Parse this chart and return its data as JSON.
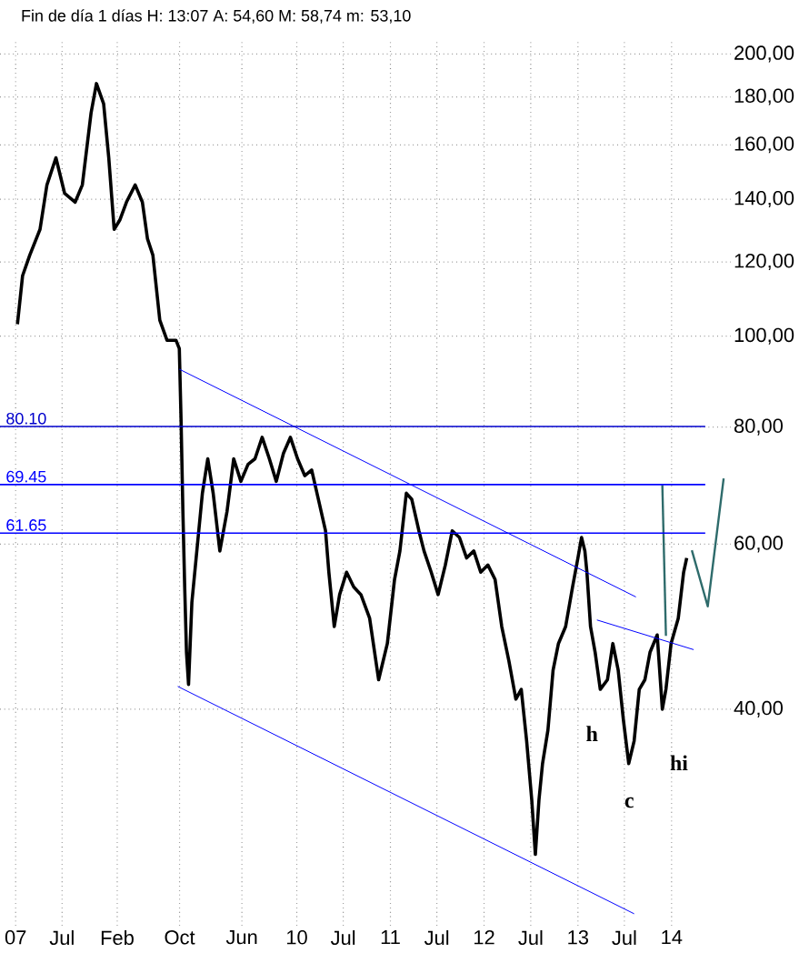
{
  "chart_data": {
    "type": "line",
    "title": "Fin de día 1 días  H: 13:07  A: 54,60  M: 58,74  m: 53,10",
    "log": "y",
    "grid": true,
    "marker": "none",
    "line_style": "solid",
    "xlim": [
      "2006-11-01",
      "2014-08-20"
    ],
    "ylim": [
      23.5,
      207
    ],
    "xticks": [
      {
        "value": "2007-01-01",
        "label": "07"
      },
      {
        "value": "2007-07-01",
        "label": "Jul"
      },
      {
        "value": "2008-02-01",
        "label": "Feb"
      },
      {
        "value": "2008-10-01",
        "label": "Oct"
      },
      {
        "value": "2009-06-01",
        "label": "Jun"
      },
      {
        "value": "2010-01-01",
        "label": "10"
      },
      {
        "value": "2010-07-01",
        "label": "Jul"
      },
      {
        "value": "2011-01-01",
        "label": "11"
      },
      {
        "value": "2011-07-01",
        "label": "Jul"
      },
      {
        "value": "2012-01-01",
        "label": "12"
      },
      {
        "value": "2012-07-01",
        "label": "Jul"
      },
      {
        "value": "2013-01-01",
        "label": "13"
      },
      {
        "value": "2013-07-01",
        "label": "Jul"
      },
      {
        "value": "2014-01-01",
        "label": "14"
      }
    ],
    "yticks": [
      {
        "value": 40,
        "label": "40,00"
      },
      {
        "value": 60,
        "label": "60,00"
      },
      {
        "value": 80,
        "label": "80,00"
      },
      {
        "value": 100,
        "label": "100,00"
      },
      {
        "value": 120,
        "label": "120,00"
      },
      {
        "value": 140,
        "label": "140,00"
      },
      {
        "value": 160,
        "label": "160,00"
      },
      {
        "value": 180,
        "label": "180,00"
      },
      {
        "value": 200,
        "label": "200,00"
      }
    ],
    "series": [
      {
        "color": "#000000",
        "x": [
          "2007-01-08",
          "2007-01-28",
          "2007-02-25",
          "2007-04-06",
          "2007-05-03",
          "2007-06-07",
          "2007-07-11",
          "2007-08-21",
          "2007-09-18",
          "2007-10-22",
          "2007-11-12",
          "2007-12-10",
          "2007-12-30",
          "2008-01-20",
          "2008-02-11",
          "2008-03-08",
          "2008-04-11",
          "2008-05-09",
          "2008-05-29",
          "2008-06-19",
          "2008-07-16",
          "2008-08-13",
          "2008-09-17",
          "2008-09-30",
          "2008-10-07",
          "2008-10-14",
          "2008-10-21",
          "2008-10-28",
          "2008-11-05",
          "2008-11-18",
          "2008-12-02",
          "2008-12-29",
          "2009-01-19",
          "2009-02-09",
          "2009-03-07",
          "2009-04-04",
          "2009-04-30",
          "2009-05-28",
          "2009-06-25",
          "2009-07-22",
          "2009-08-19",
          "2009-09-16",
          "2009-10-13",
          "2009-11-10",
          "2009-12-07",
          "2010-01-04",
          "2010-02-01",
          "2010-02-28",
          "2010-03-26",
          "2010-04-23",
          "2010-05-06",
          "2010-05-27",
          "2010-06-17",
          "2010-07-14",
          "2010-08-11",
          "2010-09-08",
          "2010-10-12",
          "2010-11-16",
          "2010-12-20",
          "2011-01-17",
          "2011-02-07",
          "2011-03-04",
          "2011-03-25",
          "2011-04-22",
          "2011-05-12",
          "2011-06-09",
          "2011-07-06",
          "2011-08-03",
          "2011-08-30",
          "2011-09-27",
          "2011-10-25",
          "2011-11-22",
          "2011-12-19",
          "2012-01-16",
          "2012-02-13",
          "2012-03-10",
          "2012-04-07",
          "2012-05-04",
          "2012-05-25",
          "2012-06-15",
          "2012-07-05",
          "2012-07-19",
          "2012-08-02",
          "2012-08-16",
          "2012-09-06",
          "2012-09-26",
          "2012-10-17",
          "2012-11-14",
          "2012-12-11",
          "2013-01-01",
          "2013-01-15",
          "2013-01-28",
          "2013-02-05",
          "2013-02-19",
          "2013-03-09",
          "2013-03-29",
          "2013-04-26",
          "2013-05-17",
          "2013-06-07",
          "2013-06-27",
          "2013-07-18",
          "2013-08-08",
          "2013-08-28",
          "2013-09-19",
          "2013-10-09",
          "2013-11-06",
          "2013-11-26",
          "2013-12-10",
          "2013-12-30",
          "2014-01-27",
          "2014-02-17",
          "2014-03-01"
        ],
        "values": [
          103,
          116,
          122,
          130,
          145,
          155,
          142,
          139,
          145,
          173,
          186,
          177,
          155,
          130,
          133,
          139,
          145,
          139,
          127,
          122,
          104,
          99,
          99,
          97,
          81,
          65,
          54,
          46,
          42.5,
          52,
          57,
          68,
          74,
          68,
          59,
          65,
          74,
          70,
          73,
          74,
          78,
          74,
          70,
          75,
          78,
          74,
          71,
          72,
          67,
          62,
          56,
          49,
          53,
          56,
          54,
          53,
          50,
          43,
          47,
          55,
          59,
          68,
          67,
          62,
          59,
          56,
          53,
          57,
          62,
          61,
          58,
          59,
          56,
          57,
          55,
          49,
          45,
          41,
          42,
          37,
          32,
          28,
          32,
          35,
          38,
          44,
          47,
          49,
          54,
          58,
          61,
          59,
          56,
          49,
          46,
          42,
          43,
          47,
          44,
          39,
          35,
          37,
          42,
          43,
          46,
          48,
          40,
          42,
          47,
          50,
          56,
          58
        ]
      },
      {
        "color": "#0000ff",
        "x": [
          "2008-09-30",
          "2013-08-15"
        ],
        "values": [
          92.2,
          52.7
        ]
      },
      {
        "color": "#0000ff",
        "x": [
          "2008-09-24",
          "2013-08-08"
        ],
        "values": [
          42.3,
          24.2
        ]
      },
      {
        "color": "#0000ff",
        "x": [
          "2013-03-16",
          "2014-03-28"
        ],
        "values": [
          49.8,
          46.3
        ]
      },
      {
        "color": "#2e6b6b",
        "x": [
          "2013-12-10",
          "2013-11-26"
        ],
        "values": [
          47.9,
          69.4
        ]
      },
      {
        "color": "#2e6b6b",
        "x": [
          "2014-03-21",
          "2014-05-22",
          "2014-07-23"
        ],
        "values": [
          59.1,
          51.5,
          70.5
        ]
      }
    ],
    "ref_lines": [
      {
        "axis": "y",
        "value": 80.1,
        "label": "80.10",
        "color": "#0000cc"
      },
      {
        "axis": "y",
        "value": 69.45,
        "label": "69.45",
        "color": "#0000ff"
      },
      {
        "axis": "y",
        "value": 61.65,
        "label": "61.65",
        "color": "#0000ff"
      }
    ],
    "annotations": [
      "h",
      "c",
      "hi"
    ]
  }
}
